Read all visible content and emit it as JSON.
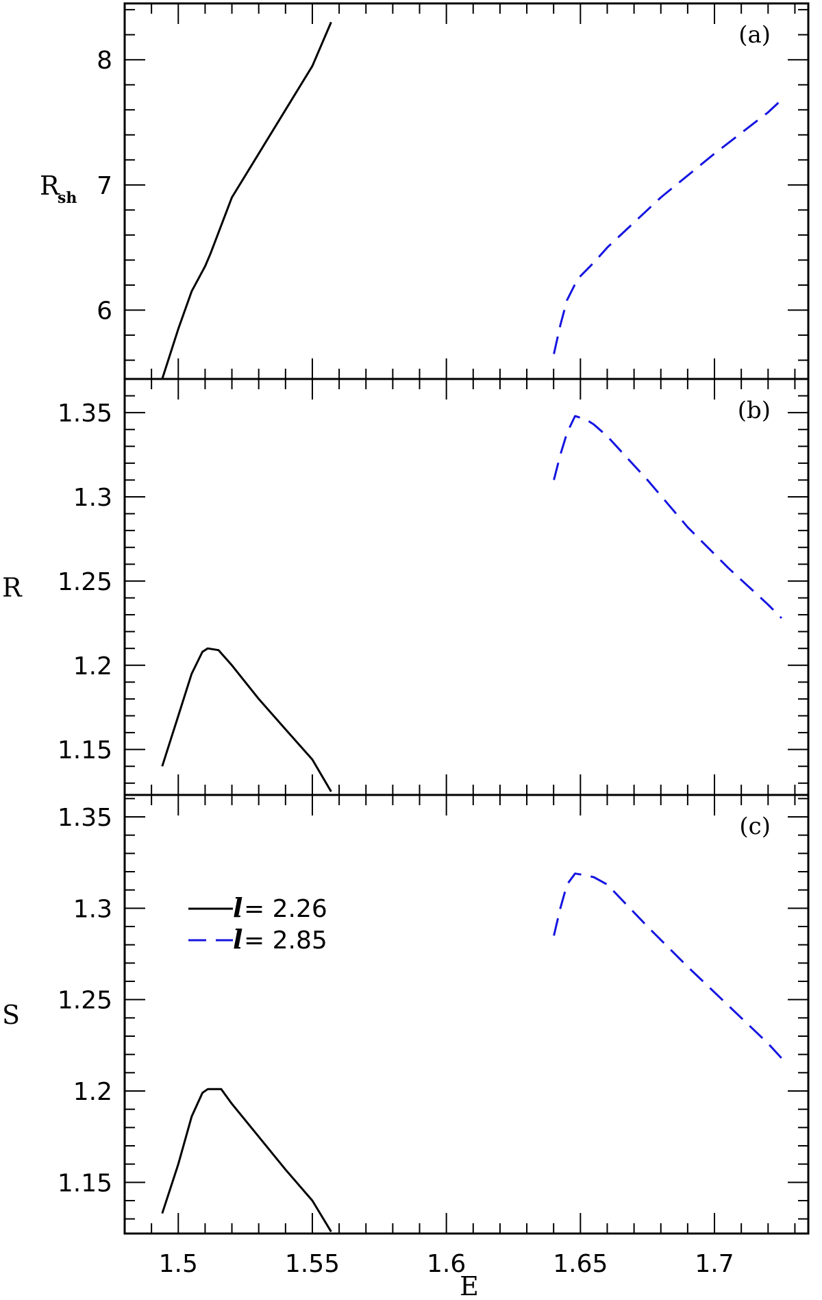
{
  "chart_data": {
    "type": "line",
    "xlabel": "E",
    "xlim": [
      1.48,
      1.735
    ],
    "x_ticks": [
      "1.5",
      "1.55",
      "1.6",
      "1.65",
      "1.7"
    ],
    "legend": {
      "placement": "center-left of panel (c)",
      "entries": [
        {
          "symbol": "l",
          "text": "= 2.26",
          "style": "solid",
          "color": "#000000"
        },
        {
          "symbol": "l",
          "text": "= 2.85",
          "style": "dashed",
          "color": "#1515e0"
        }
      ]
    },
    "panels": [
      {
        "label": "(a)",
        "ylabel": "R",
        "ylabel_sub": "sh",
        "ylim": [
          5.45,
          8.45
        ],
        "y_ticks": [
          "6",
          "7",
          "8"
        ],
        "series": [
          {
            "style": "solid",
            "color": "#000000",
            "x": [
              1.494,
              1.5,
              1.505,
              1.51,
              1.512,
              1.52,
              1.53,
              1.54,
              1.55,
              1.557
            ],
            "y": [
              5.45,
              5.85,
              6.15,
              6.35,
              6.45,
              6.9,
              7.25,
              7.6,
              7.95,
              8.3
            ]
          },
          {
            "style": "dashed",
            "color": "#1515e0",
            "x": [
              1.6401,
              1.6425,
              1.645,
              1.649,
              1.655,
              1.66,
              1.68,
              1.7,
              1.72,
              1.725
            ],
            "y": [
              5.65,
              5.88,
              6.08,
              6.25,
              6.38,
              6.5,
              6.9,
              7.25,
              7.58,
              7.68
            ]
          }
        ]
      },
      {
        "label": "(b)",
        "ylabel": "R",
        "ylim": [
          1.123,
          1.37
        ],
        "y_ticks": [
          "1.15",
          "1.2",
          "1.25",
          "1.3",
          "1.35"
        ],
        "series": [
          {
            "style": "solid",
            "color": "#000000",
            "x": [
              1.494,
              1.5,
              1.505,
              1.509,
              1.511,
              1.515,
              1.52,
              1.53,
              1.54,
              1.55,
              1.557
            ],
            "y": [
              1.14,
              1.17,
              1.195,
              1.208,
              1.21,
              1.209,
              1.2,
              1.18,
              1.162,
              1.144,
              1.125
            ]
          },
          {
            "style": "dashed",
            "color": "#1515e0",
            "x": [
              1.6401,
              1.6425,
              1.645,
              1.648,
              1.652,
              1.655,
              1.66,
              1.675,
              1.69,
              1.705,
              1.72,
              1.725
            ],
            "y": [
              1.31,
              1.325,
              1.338,
              1.348,
              1.346,
              1.343,
              1.336,
              1.31,
              1.282,
              1.258,
              1.236,
              1.228
            ]
          }
        ]
      },
      {
        "label": "(c)",
        "ylabel": "S",
        "ylim": [
          1.122,
          1.362
        ],
        "y_ticks": [
          "1.15",
          "1.2",
          "1.25",
          "1.3",
          "1.35"
        ],
        "series": [
          {
            "style": "solid",
            "color": "#000000",
            "x": [
              1.494,
              1.5,
              1.505,
              1.509,
              1.511,
              1.516,
              1.52,
              1.53,
              1.54,
              1.55,
              1.557
            ],
            "y": [
              1.133,
              1.16,
              1.186,
              1.199,
              1.201,
              1.201,
              1.193,
              1.175,
              1.157,
              1.14,
              1.123
            ]
          },
          {
            "style": "dashed",
            "color": "#1515e0",
            "x": [
              1.6401,
              1.6425,
              1.645,
              1.648,
              1.652,
              1.655,
              1.66,
              1.675,
              1.69,
              1.705,
              1.72,
              1.725
            ],
            "y": [
              1.285,
              1.3,
              1.313,
              1.319,
              1.318,
              1.317,
              1.313,
              1.29,
              1.268,
              1.247,
              1.226,
              1.218
            ]
          }
        ]
      }
    ]
  }
}
